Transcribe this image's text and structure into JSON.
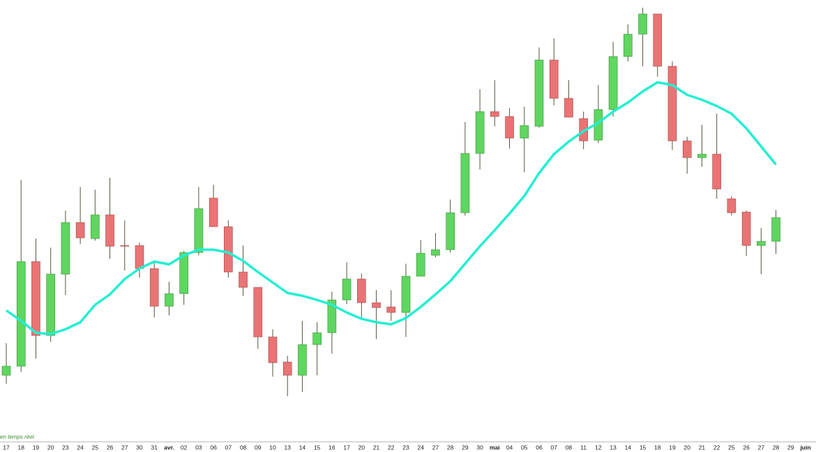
{
  "chart_data": {
    "type": "candlestick",
    "note_text": "en temps réel",
    "categories": [
      "17",
      "18",
      "19",
      "20",
      "23",
      "24",
      "25",
      "26",
      "27",
      "30",
      "31",
      "avr.",
      "02",
      "03",
      "06",
      "07",
      "08",
      "09",
      "10",
      "13",
      "14",
      "15",
      "16",
      "17",
      "20",
      "21",
      "22",
      "23",
      "24",
      "27",
      "28",
      "29",
      "30",
      "mai",
      "04",
      "05",
      "06",
      "07",
      "08",
      "11",
      "12",
      "13",
      "14",
      "15",
      "18",
      "19",
      "20",
      "21",
      "22",
      "25",
      "26",
      "27",
      "28",
      "29",
      "juin"
    ],
    "open": [
      94,
      107,
      257,
      151,
      239,
      313,
      290,
      324,
      280,
      280,
      247,
      193,
      211,
      270,
      348,
      307,
      242,
      220,
      149,
      113,
      94,
      138,
      155,
      202,
      232,
      198,
      192,
      184,
      236,
      266,
      274,
      327,
      412,
      472,
      465,
      434,
      451,
      546,
      491,
      462,
      431,
      475,
      551,
      583,
      612,
      537,
      430,
      406,
      411,
      347,
      328,
      280,
      286,
      null,
      null
    ],
    "high": [
      140,
      374,
      290,
      277,
      330,
      364,
      360,
      377,
      316,
      284,
      257,
      228,
      272,
      364,
      367,
      316,
      280,
      220,
      160,
      122,
      172,
      170,
      214,
      256,
      240,
      216,
      216,
      254,
      288,
      298,
      346,
      457,
      504,
      517,
      477,
      479,
      564,
      577,
      517,
      472,
      510,
      572,
      597,
      621,
      612,
      544,
      436,
      453,
      469,
      351,
      330,
      305,
      331,
      null,
      null
    ],
    "low": [
      82,
      99,
      118,
      142,
      209,
      282,
      287,
      261,
      244,
      234,
      177,
      180,
      195,
      266,
      307,
      234,
      208,
      132,
      92,
      64,
      70,
      94,
      125,
      196,
      177,
      146,
      172,
      149,
      236,
      263,
      270,
      323,
      389,
      451,
      419,
      385,
      449,
      481,
      464,
      418,
      427,
      465,
      544,
      537,
      522,
      417,
      383,
      393,
      347,
      323,
      265,
      239,
      268,
      null,
      null
    ],
    "close": [
      107,
      257,
      151,
      239,
      313,
      291,
      324,
      279,
      279,
      247,
      193,
      211,
      270,
      333,
      307,
      242,
      220,
      149,
      112,
      94,
      138,
      155,
      202,
      232,
      198,
      191,
      184,
      236,
      269,
      274,
      327,
      412,
      472,
      465,
      434,
      452,
      546,
      491,
      464,
      430,
      475,
      551,
      583,
      612,
      537,
      430,
      406,
      411,
      361,
      327,
      280,
      286,
      320,
      null,
      null
    ],
    "moving_average": [
      187,
      172,
      155,
      153,
      160,
      170,
      195,
      210,
      232,
      247,
      257,
      253,
      266,
      274,
      274,
      270,
      258,
      242,
      227,
      212,
      208,
      202,
      195,
      184,
      175,
      170,
      167,
      176,
      192,
      210,
      229,
      254,
      279,
      302,
      326,
      351,
      384,
      411,
      429,
      444,
      456,
      472,
      485,
      501,
      514,
      510,
      496,
      489,
      480,
      469,
      448,
      422,
      396,
      null,
      null
    ],
    "up_color": "#5fd65f",
    "down_color": "#ea7373",
    "average_color": "#22efd2",
    "ylim": [
      0,
      632
    ]
  }
}
